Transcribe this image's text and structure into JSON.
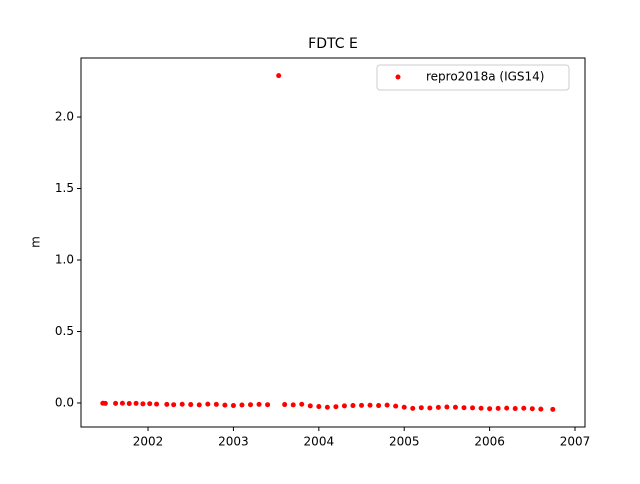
{
  "chart_data": {
    "type": "scatter",
    "title": "FDTC E",
    "ylabel": "m",
    "series": [
      {
        "name": "repro2018a (IGS14)",
        "color": "#ff0000",
        "x": [
          2001.47,
          2001.5,
          2001.62,
          2001.7,
          2001.78,
          2001.86,
          2001.94,
          2002.02,
          2002.1,
          2002.22,
          2002.3,
          2002.4,
          2002.5,
          2002.6,
          2002.7,
          2002.8,
          2002.9,
          2003.0,
          2003.1,
          2003.2,
          2003.3,
          2003.4,
          2003.53,
          2003.6,
          2003.7,
          2003.8,
          2003.9,
          2004.0,
          2004.1,
          2004.2,
          2004.3,
          2004.4,
          2004.5,
          2004.6,
          2004.7,
          2004.8,
          2004.9,
          2005.0,
          2005.1,
          2005.2,
          2005.3,
          2005.4,
          2005.5,
          2005.6,
          2005.7,
          2005.8,
          2005.9,
          2006.0,
          2006.1,
          2006.2,
          2006.3,
          2006.4,
          2006.5,
          2006.6,
          2006.74
        ],
        "values": [
          -0.002,
          -0.003,
          -0.003,
          -0.002,
          -0.004,
          -0.003,
          -0.006,
          -0.005,
          -0.008,
          -0.01,
          -0.012,
          -0.009,
          -0.011,
          -0.013,
          -0.008,
          -0.01,
          -0.015,
          -0.018,
          -0.014,
          -0.012,
          -0.01,
          -0.012,
          2.29,
          -0.011,
          -0.013,
          -0.009,
          -0.02,
          -0.025,
          -0.03,
          -0.026,
          -0.02,
          -0.018,
          -0.017,
          -0.016,
          -0.018,
          -0.015,
          -0.022,
          -0.03,
          -0.038,
          -0.033,
          -0.035,
          -0.031,
          -0.028,
          -0.03,
          -0.033,
          -0.034,
          -0.037,
          -0.04,
          -0.038,
          -0.036,
          -0.039,
          -0.037,
          -0.04,
          -0.043,
          -0.045
        ]
      }
    ],
    "xlim": [
      2001.215,
      2007.117
    ],
    "xticks": [
      2002,
      2003,
      2004,
      2005,
      2006,
      2007
    ],
    "ylim": [
      -0.168,
      2.413
    ],
    "yticks": [
      {
        "value": 0,
        "label": "0.0"
      },
      0.5,
      {
        "value": 1,
        "label": "1.0"
      },
      1.5,
      {
        "value": 2,
        "label": "2.0"
      }
    ],
    "legend": "upper right"
  }
}
